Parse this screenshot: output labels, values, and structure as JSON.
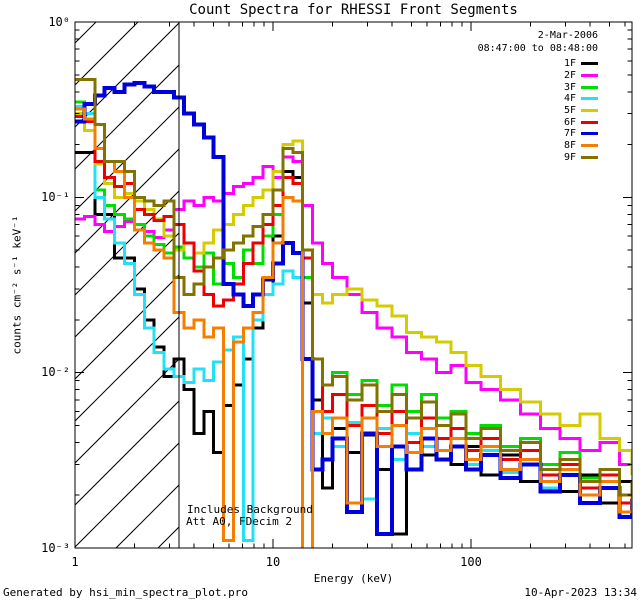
{
  "chart_data": {
    "type": "line",
    "title": "Count Spectra for RHESSI Front Segments",
    "date_label": "2-Mar-2006",
    "time_range": "08:47:00 to 08:48:00",
    "xlabel": "Energy (keV)",
    "ylabel": "counts cm⁻² s⁻¹ keV⁻¹",
    "xscale": "log",
    "yscale": "log",
    "xlim": [
      1,
      650
    ],
    "ylim": [
      0.001,
      1
    ],
    "x_tick_labels": [
      "1",
      "10",
      "100"
    ],
    "x_tick_values": [
      1,
      10,
      100
    ],
    "y_tick_labels": [
      "10⁰",
      "10⁻¹",
      "10⁻²",
      "10⁻³"
    ],
    "y_tick_values": [
      1,
      0.1,
      0.01,
      0.001
    ],
    "grid": false,
    "legend_position": "top-right",
    "annotation_line1": "Includes Background",
    "annotation_line2": "Att A0, FDecim 2",
    "hatch_region": {
      "x_min": 1,
      "x_max": 3.35
    },
    "frame_color": "#000000",
    "energies": [
      1.0,
      1.12,
      1.26,
      1.41,
      1.58,
      1.78,
      2.0,
      2.24,
      2.51,
      2.82,
      3.16,
      3.55,
      3.98,
      4.47,
      5.01,
      5.62,
      6.31,
      7.08,
      7.94,
      8.91,
      10.0,
      11.2,
      12.6,
      14.1,
      15.8,
      17.8,
      20.0,
      23.7,
      28.2,
      33.5,
      39.8,
      47.3,
      56.2,
      66.8,
      79.4,
      94.4,
      112,
      141,
      178,
      224,
      282,
      355,
      447,
      562,
      650
    ],
    "series": [
      {
        "name": "1F",
        "color": "#000000",
        "values": [
          0.18,
          0.18,
          0.08,
          0.08,
          0.045,
          0.045,
          0.03,
          0.02,
          0.014,
          0.0095,
          0.012,
          0.008,
          0.0045,
          0.006,
          0.0035,
          0.0065,
          0.0085,
          0.012,
          0.018,
          0.028,
          0.06,
          0.14,
          0.13,
          0.025,
          0.007,
          0.0022,
          0.0048,
          0.0035,
          0.0044,
          0.0028,
          0.0012,
          0.004,
          0.0034,
          0.0042,
          0.003,
          0.0038,
          0.0026,
          0.0034,
          0.0024,
          0.003,
          0.0021,
          0.0026,
          0.0018,
          0.0024,
          0.002
        ]
      },
      {
        "name": "2F",
        "color": "#ff00ff",
        "values": [
          0.075,
          0.078,
          0.07,
          0.064,
          0.068,
          0.073,
          0.07,
          0.064,
          0.059,
          0.065,
          0.085,
          0.095,
          0.09,
          0.1,
          0.095,
          0.105,
          0.115,
          0.12,
          0.13,
          0.15,
          0.13,
          0.17,
          0.16,
          0.09,
          0.055,
          0.042,
          0.035,
          0.028,
          0.022,
          0.018,
          0.016,
          0.013,
          0.012,
          0.01,
          0.011,
          0.0088,
          0.008,
          0.007,
          0.0058,
          0.0048,
          0.0042,
          0.0036,
          0.004,
          0.003,
          0.0033
        ]
      },
      {
        "name": "3F",
        "color": "#00dd00",
        "values": [
          0.35,
          0.28,
          0.11,
          0.09,
          0.08,
          0.075,
          0.07,
          0.06,
          0.054,
          0.048,
          0.052,
          0.045,
          0.04,
          0.048,
          0.032,
          0.042,
          0.035,
          0.05,
          0.042,
          0.06,
          0.08,
          0.1,
          0.095,
          0.035,
          0.012,
          0.0085,
          0.01,
          0.0075,
          0.009,
          0.0065,
          0.0085,
          0.006,
          0.0075,
          0.0055,
          0.006,
          0.0045,
          0.005,
          0.0038,
          0.0042,
          0.003,
          0.0035,
          0.0025,
          0.0028,
          0.002,
          0.0024
        ]
      },
      {
        "name": "4F",
        "color": "#22e0f5",
        "values": [
          0.33,
          0.3,
          0.1,
          0.075,
          0.055,
          0.042,
          0.028,
          0.018,
          0.013,
          0.0105,
          0.0095,
          0.0088,
          0.0105,
          0.009,
          0.0115,
          0.0135,
          0.016,
          0.0011,
          0.02,
          0.028,
          0.032,
          0.038,
          0.035,
          0.012,
          0.0045,
          0.0055,
          0.0038,
          0.0052,
          0.0019,
          0.0048,
          0.0032,
          0.0045,
          0.0038,
          0.0032,
          0.0042,
          0.003,
          0.0036,
          0.0027,
          0.0032,
          0.0022,
          0.0028,
          0.002,
          0.0024,
          0.0016,
          0.0021
        ]
      },
      {
        "name": "5F",
        "color": "#d4cb00",
        "values": [
          0.3,
          0.24,
          0.155,
          0.12,
          0.1,
          0.105,
          0.095,
          0.085,
          0.075,
          0.06,
          0.05,
          0.055,
          0.048,
          0.055,
          0.065,
          0.07,
          0.08,
          0.09,
          0.1,
          0.11,
          0.14,
          0.2,
          0.21,
          0.045,
          0.028,
          0.025,
          0.028,
          0.03,
          0.026,
          0.024,
          0.021,
          0.017,
          0.016,
          0.015,
          0.013,
          0.011,
          0.0095,
          0.008,
          0.0068,
          0.0058,
          0.005,
          0.0058,
          0.0042,
          0.0036,
          0.0026
        ]
      },
      {
        "name": "6F",
        "color": "#ee0000",
        "values": [
          0.29,
          0.27,
          0.16,
          0.13,
          0.115,
          0.12,
          0.085,
          0.08,
          0.074,
          0.078,
          0.07,
          0.055,
          0.038,
          0.028,
          0.024,
          0.026,
          0.032,
          0.042,
          0.055,
          0.07,
          0.09,
          0.13,
          0.12,
          0.045,
          0.012,
          0.006,
          0.0075,
          0.005,
          0.0065,
          0.0045,
          0.006,
          0.004,
          0.0055,
          0.0042,
          0.0048,
          0.0036,
          0.0042,
          0.0032,
          0.0036,
          0.0026,
          0.003,
          0.0022,
          0.0026,
          0.0018,
          0.0022
        ]
      },
      {
        "name": "7F",
        "color": "#0000dd",
        "values": [
          0.27,
          0.34,
          0.38,
          0.42,
          0.4,
          0.44,
          0.45,
          0.43,
          0.4,
          0.4,
          0.37,
          0.3,
          0.26,
          0.22,
          0.17,
          0.032,
          0.028,
          0.024,
          0.028,
          0.034,
          0.042,
          0.055,
          0.048,
          0.012,
          0.0028,
          0.0032,
          0.0042,
          0.0016,
          0.0045,
          0.0012,
          0.0038,
          0.0028,
          0.0042,
          0.0032,
          0.0038,
          0.0028,
          0.0034,
          0.0025,
          0.003,
          0.0021,
          0.0026,
          0.0018,
          0.0022,
          0.0015,
          0.0019
        ]
      },
      {
        "name": "8F",
        "color": "#f57d00",
        "values": [
          0.32,
          0.28,
          0.19,
          0.16,
          0.14,
          0.1,
          0.065,
          0.055,
          0.05,
          0.045,
          0.022,
          0.018,
          0.02,
          0.016,
          0.018,
          0.0011,
          0.015,
          0.018,
          0.022,
          0.035,
          0.055,
          0.1,
          0.095,
          0.0009,
          0.006,
          0.0045,
          0.0055,
          0.0018,
          0.0055,
          0.0038,
          0.005,
          0.0035,
          0.0048,
          0.0036,
          0.0042,
          0.0032,
          0.0038,
          0.0028,
          0.0032,
          0.0024,
          0.0028,
          0.002,
          0.0024,
          0.0016,
          0.002
        ]
      },
      {
        "name": "9F",
        "color": "#837100",
        "values": [
          0.47,
          0.47,
          0.26,
          0.16,
          0.16,
          0.14,
          0.1,
          0.095,
          0.09,
          0.095,
          0.035,
          0.028,
          0.032,
          0.04,
          0.045,
          0.05,
          0.055,
          0.06,
          0.068,
          0.08,
          0.11,
          0.19,
          0.18,
          0.05,
          0.012,
          0.0085,
          0.0095,
          0.007,
          0.0085,
          0.006,
          0.0075,
          0.0055,
          0.0068,
          0.005,
          0.0058,
          0.0042,
          0.0048,
          0.0036,
          0.004,
          0.0028,
          0.0032,
          0.0024,
          0.0028,
          0.002,
          0.0024
        ]
      }
    ]
  },
  "footer": {
    "left": "Generated by hsi_min_spectra_plot.pro",
    "right": "10-Apr-2023 13:34"
  }
}
